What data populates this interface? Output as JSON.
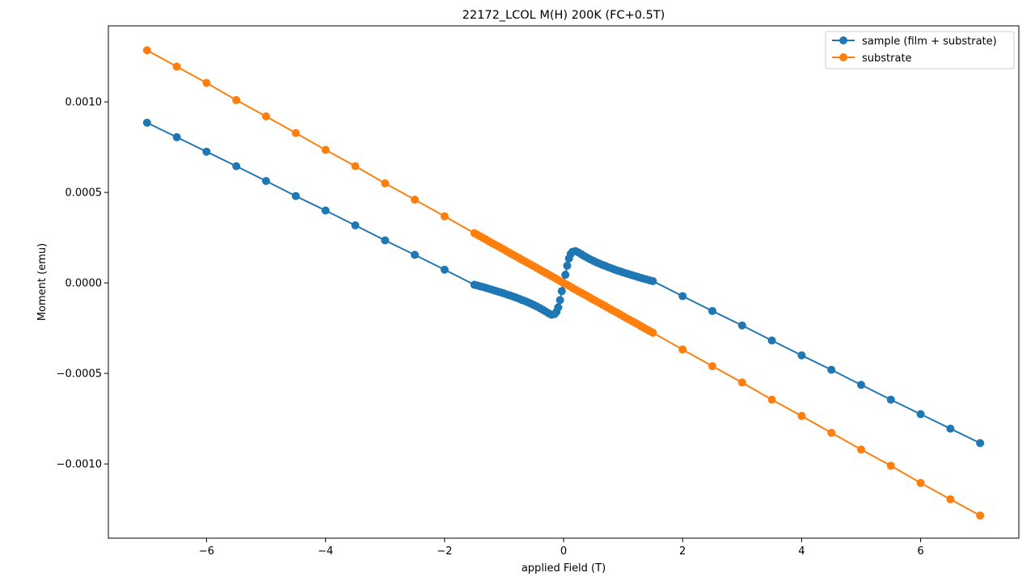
{
  "chart_data": {
    "type": "line",
    "title": "22172_LCOL M(H) 200K (FC+0.5T)",
    "xlabel": "applied Field (T)",
    "ylabel": "Moment (emu)",
    "xlim": [
      -7.65,
      7.65
    ],
    "ylim": [
      -0.00141,
      0.00142
    ],
    "x_ticks": [
      -6,
      -4,
      -2,
      0,
      2,
      4,
      6
    ],
    "x_tick_labels": [
      "−6",
      "−4",
      "−2",
      "0",
      "2",
      "4",
      "6"
    ],
    "y_ticks": [
      -0.001,
      -0.0005,
      0.0,
      0.0005,
      0.001
    ],
    "y_tick_labels": [
      "−0.0010",
      "−0.0005",
      "0.0000",
      "0.0005",
      "0.0010"
    ],
    "grid": false,
    "legend_position": "top-right",
    "series": [
      {
        "name": "sample (film + substrate)",
        "color": "#1f77b4",
        "marker": "circle",
        "points": [
          [
            -7.0,
            0.000885
          ],
          [
            -6.5,
            0.000805
          ],
          [
            -6.0,
            0.000725
          ],
          [
            -5.5,
            0.000645
          ],
          [
            -5.0,
            0.000563
          ],
          [
            -4.5,
            0.00048
          ],
          [
            -4.0,
            0.0004
          ],
          [
            -3.5,
            0.000318
          ],
          [
            -3.0,
            0.000235
          ],
          [
            -2.5,
            0.000155
          ],
          [
            -2.0,
            7.3e-05
          ],
          [
            -1.5,
            -1e-05
          ],
          [
            -1.45,
            -1.4e-05
          ],
          [
            -1.4,
            -1.9e-05
          ],
          [
            -1.35,
            -2.3e-05
          ],
          [
            -1.3,
            -2.8e-05
          ],
          [
            -1.25,
            -3.3e-05
          ],
          [
            -1.2,
            -3.8e-05
          ],
          [
            -1.15,
            -4.3e-05
          ],
          [
            -1.1,
            -4.8e-05
          ],
          [
            -1.05,
            -5.3e-05
          ],
          [
            -1.0,
            -5.8e-05
          ],
          [
            -0.95,
            -6.4e-05
          ],
          [
            -0.9,
            -6.9e-05
          ],
          [
            -0.85,
            -7.5e-05
          ],
          [
            -0.8,
            -8.1e-05
          ],
          [
            -0.75,
            -8.7e-05
          ],
          [
            -0.7,
            -9.4e-05
          ],
          [
            -0.65,
            -0.0001
          ],
          [
            -0.6,
            -0.000107
          ],
          [
            -0.55,
            -0.000114
          ],
          [
            -0.5,
            -0.000122
          ],
          [
            -0.45,
            -0.00013
          ],
          [
            -0.4,
            -0.000139
          ],
          [
            -0.35,
            -0.000148
          ],
          [
            -0.3,
            -0.000158
          ],
          [
            -0.25,
            -0.000168
          ],
          [
            -0.2,
            -0.000176
          ],
          [
            -0.15,
            -0.000172
          ],
          [
            -0.12,
            -0.00016
          ],
          [
            -0.09,
            -0.000135
          ],
          [
            -0.06,
            -9.5e-05
          ],
          [
            -0.03,
            -4.5e-05
          ],
          [
            0.0,
            0.0
          ],
          [
            0.03,
            4.5e-05
          ],
          [
            0.06,
            9.5e-05
          ],
          [
            0.09,
            0.000135
          ],
          [
            0.12,
            0.00016
          ],
          [
            0.15,
            0.000172
          ],
          [
            0.2,
            0.000176
          ],
          [
            0.25,
            0.000168
          ],
          [
            0.3,
            0.000158
          ],
          [
            0.35,
            0.000148
          ],
          [
            0.4,
            0.000139
          ],
          [
            0.45,
            0.00013
          ],
          [
            0.5,
            0.000122
          ],
          [
            0.55,
            0.000114
          ],
          [
            0.6,
            0.000107
          ],
          [
            0.65,
            0.0001
          ],
          [
            0.7,
            9.4e-05
          ],
          [
            0.75,
            8.7e-05
          ],
          [
            0.8,
            8.1e-05
          ],
          [
            0.85,
            7.5e-05
          ],
          [
            0.9,
            6.9e-05
          ],
          [
            0.95,
            6.4e-05
          ],
          [
            1.0,
            5.8e-05
          ],
          [
            1.05,
            5.3e-05
          ],
          [
            1.1,
            4.8e-05
          ],
          [
            1.15,
            4.3e-05
          ],
          [
            1.2,
            3.8e-05
          ],
          [
            1.25,
            3.3e-05
          ],
          [
            1.3,
            2.8e-05
          ],
          [
            1.35,
            2.3e-05
          ],
          [
            1.4,
            1.9e-05
          ],
          [
            1.45,
            1.4e-05
          ],
          [
            1.5,
            1e-05
          ],
          [
            2.0,
            -7.3e-05
          ],
          [
            2.5,
            -0.000155
          ],
          [
            3.0,
            -0.000235
          ],
          [
            3.5,
            -0.000318
          ],
          [
            4.0,
            -0.0004
          ],
          [
            4.5,
            -0.00048
          ],
          [
            5.0,
            -0.000563
          ],
          [
            5.5,
            -0.000645
          ],
          [
            6.0,
            -0.000725
          ],
          [
            6.5,
            -0.000805
          ],
          [
            7.0,
            -0.000885
          ]
        ]
      },
      {
        "name": "substrate",
        "color": "#ff7f0e",
        "marker": "circle",
        "points": [
          [
            -7.0,
            0.001285
          ],
          [
            -6.5,
            0.001195
          ],
          [
            -6.0,
            0.001105
          ],
          [
            -5.5,
            0.00101
          ],
          [
            -5.0,
            0.00092
          ],
          [
            -4.5,
            0.000828
          ],
          [
            -4.0,
            0.000735
          ],
          [
            -3.5,
            0.000645
          ],
          [
            -3.0,
            0.00055
          ],
          [
            -2.5,
            0.00046
          ],
          [
            -2.0,
            0.000368
          ],
          [
            -1.5,
            0.000275
          ],
          [
            -1.45,
            0.000266
          ],
          [
            -1.4,
            0.000257
          ],
          [
            -1.35,
            0.000248
          ],
          [
            -1.3,
            0.000239
          ],
          [
            -1.25,
            0.000229
          ],
          [
            -1.2,
            0.00022
          ],
          [
            -1.15,
            0.000211
          ],
          [
            -1.1,
            0.000202
          ],
          [
            -1.05,
            0.000193
          ],
          [
            -1.0,
            0.000184
          ],
          [
            -0.95,
            0.000174
          ],
          [
            -0.9,
            0.000165
          ],
          [
            -0.85,
            0.000156
          ],
          [
            -0.8,
            0.000147
          ],
          [
            -0.75,
            0.000138
          ],
          [
            -0.7,
            0.000128
          ],
          [
            -0.65,
            0.000119
          ],
          [
            -0.6,
            0.00011
          ],
          [
            -0.55,
            0.000101
          ],
          [
            -0.5,
            9.2e-05
          ],
          [
            -0.45,
            8.3e-05
          ],
          [
            -0.4,
            7.3e-05
          ],
          [
            -0.35,
            6.4e-05
          ],
          [
            -0.3,
            5.5e-05
          ],
          [
            -0.25,
            4.6e-05
          ],
          [
            -0.2,
            3.7e-05
          ],
          [
            -0.15,
            2.8e-05
          ],
          [
            -0.1,
            1.8e-05
          ],
          [
            -0.05,
            9e-06
          ],
          [
            0.0,
            0.0
          ],
          [
            0.05,
            -9e-06
          ],
          [
            0.1,
            -1.8e-05
          ],
          [
            0.15,
            -2.8e-05
          ],
          [
            0.2,
            -3.7e-05
          ],
          [
            0.25,
            -4.6e-05
          ],
          [
            0.3,
            -5.5e-05
          ],
          [
            0.35,
            -6.4e-05
          ],
          [
            0.4,
            -7.3e-05
          ],
          [
            0.45,
            -8.3e-05
          ],
          [
            0.5,
            -9.2e-05
          ],
          [
            0.55,
            -0.000101
          ],
          [
            0.6,
            -0.00011
          ],
          [
            0.65,
            -0.000119
          ],
          [
            0.7,
            -0.000128
          ],
          [
            0.75,
            -0.000138
          ],
          [
            0.8,
            -0.000147
          ],
          [
            0.85,
            -0.000156
          ],
          [
            0.9,
            -0.000165
          ],
          [
            0.95,
            -0.000174
          ],
          [
            1.0,
            -0.000184
          ],
          [
            1.05,
            -0.000193
          ],
          [
            1.1,
            -0.000202
          ],
          [
            1.15,
            -0.000211
          ],
          [
            1.2,
            -0.00022
          ],
          [
            1.25,
            -0.000229
          ],
          [
            1.3,
            -0.000239
          ],
          [
            1.35,
            -0.000248
          ],
          [
            1.4,
            -0.000257
          ],
          [
            1.45,
            -0.000266
          ],
          [
            1.5,
            -0.000275
          ],
          [
            2.0,
            -0.000368
          ],
          [
            2.5,
            -0.00046
          ],
          [
            3.0,
            -0.00055
          ],
          [
            3.5,
            -0.000645
          ],
          [
            4.0,
            -0.000735
          ],
          [
            4.5,
            -0.000828
          ],
          [
            5.0,
            -0.00092
          ],
          [
            5.5,
            -0.00101
          ],
          [
            6.0,
            -0.001105
          ],
          [
            6.5,
            -0.001195
          ],
          [
            7.0,
            -0.001285
          ]
        ]
      }
    ]
  }
}
